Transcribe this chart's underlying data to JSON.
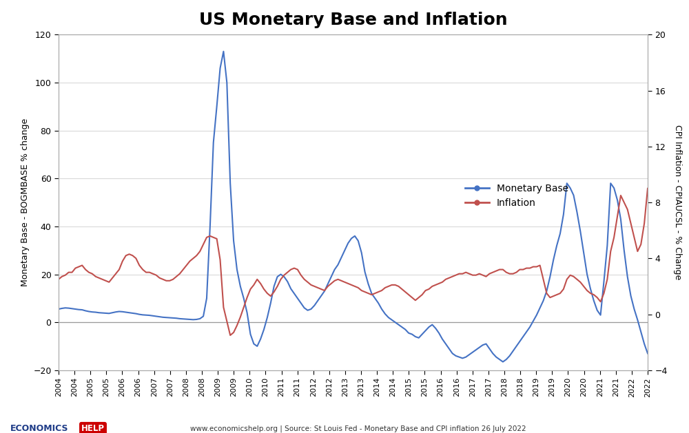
{
  "title": "US Monetary Base and Inflation",
  "ylabel_left": "Monetary Base - BOGMBASE % change",
  "ylabel_right": "CPI Inflation - CPIAUCSL - % Change",
  "ylim_left": [
    -20,
    120
  ],
  "ylim_right": [
    -4,
    20
  ],
  "yticks_left": [
    -20,
    0,
    20,
    40,
    60,
    80,
    100,
    120
  ],
  "yticks_right": [
    -4,
    0,
    4,
    8,
    12,
    16,
    20
  ],
  "footer_text": "www.economicshelp.org | Source: St Louis Fed - Monetary Base and CPI inflation 26 July 2022",
  "legend_monetary": "Monetary Base",
  "legend_inflation": "Inflation",
  "blue_color": "#4472C4",
  "red_color": "#C0504D",
  "background_color": "#FFFFFF",
  "grid_color": "#D9D9D9",
  "monetary_base": [
    5.5,
    5.8,
    6.0,
    5.9,
    5.7,
    5.5,
    5.3,
    5.2,
    4.8,
    4.5,
    4.3,
    4.2,
    4.0,
    3.9,
    3.8,
    3.7,
    4.0,
    4.3,
    4.5,
    4.4,
    4.2,
    4.0,
    3.8,
    3.6,
    3.3,
    3.1,
    3.0,
    2.9,
    2.7,
    2.5,
    2.3,
    2.1,
    2.0,
    1.9,
    1.8,
    1.7,
    1.5,
    1.4,
    1.3,
    1.2,
    1.1,
    1.2,
    1.5,
    2.5,
    10.0,
    40.0,
    75.0,
    90.0,
    106.0,
    113.0,
    100.0,
    58.0,
    34.0,
    22.0,
    15.0,
    10.0,
    4.0,
    -5.0,
    -9.0,
    -10.0,
    -7.0,
    -3.0,
    2.0,
    8.0,
    15.0,
    19.0,
    20.0,
    19.0,
    17.0,
    14.0,
    12.0,
    10.0,
    8.0,
    6.0,
    5.0,
    5.5,
    7.0,
    9.0,
    11.0,
    13.0,
    16.0,
    19.0,
    22.0,
    24.0,
    27.0,
    30.0,
    33.0,
    35.0,
    36.0,
    34.0,
    29.0,
    21.0,
    16.0,
    12.0,
    10.0,
    8.0,
    5.5,
    3.5,
    2.0,
    1.0,
    0.0,
    -1.0,
    -2.0,
    -3.0,
    -4.5,
    -5.0,
    -6.0,
    -6.5,
    -5.0,
    -3.5,
    -2.0,
    -1.0,
    -2.5,
    -4.5,
    -7.0,
    -9.0,
    -11.0,
    -13.0,
    -14.0,
    -14.5,
    -15.0,
    -14.5,
    -13.5,
    -12.5,
    -11.5,
    -10.5,
    -9.5,
    -9.0,
    -11.0,
    -13.0,
    -14.5,
    -15.5,
    -16.5,
    -15.5,
    -14.0,
    -12.0,
    -10.0,
    -8.0,
    -6.0,
    -4.0,
    -2.0,
    0.5,
    3.0,
    6.0,
    9.0,
    13.0,
    19.0,
    26.0,
    32.0,
    37.0,
    45.0,
    58.0,
    56.0,
    53.0,
    46.0,
    38.0,
    29.0,
    20.0,
    14.0,
    9.0,
    5.0,
    3.0,
    17.0,
    32.0,
    58.0,
    56.0,
    51.0,
    43.0,
    30.0,
    19.0,
    11.0,
    5.5,
    1.0,
    -4.0,
    -9.0,
    -13.0
  ],
  "inflation": [
    2.5,
    2.7,
    2.8,
    3.0,
    3.0,
    3.3,
    3.4,
    3.5,
    3.2,
    3.0,
    2.9,
    2.7,
    2.6,
    2.5,
    2.4,
    2.3,
    2.6,
    2.9,
    3.2,
    3.8,
    4.2,
    4.3,
    4.2,
    4.0,
    3.5,
    3.2,
    3.0,
    3.0,
    2.9,
    2.8,
    2.6,
    2.5,
    2.4,
    2.4,
    2.5,
    2.7,
    2.9,
    3.2,
    3.5,
    3.8,
    4.0,
    4.2,
    4.5,
    5.0,
    5.5,
    5.6,
    5.5,
    5.4,
    3.9,
    0.5,
    -0.5,
    -1.5,
    -1.3,
    -0.8,
    -0.2,
    0.5,
    1.2,
    1.8,
    2.1,
    2.5,
    2.2,
    1.8,
    1.5,
    1.3,
    1.6,
    2.0,
    2.5,
    2.8,
    3.0,
    3.2,
    3.3,
    3.2,
    2.8,
    2.5,
    2.3,
    2.1,
    2.0,
    1.9,
    1.8,
    1.7,
    2.0,
    2.2,
    2.4,
    2.5,
    2.4,
    2.3,
    2.2,
    2.1,
    2.0,
    1.9,
    1.7,
    1.6,
    1.5,
    1.4,
    1.5,
    1.6,
    1.7,
    1.9,
    2.0,
    2.1,
    2.1,
    2.0,
    1.8,
    1.6,
    1.4,
    1.2,
    1.0,
    1.2,
    1.4,
    1.7,
    1.8,
    2.0,
    2.1,
    2.2,
    2.3,
    2.5,
    2.6,
    2.7,
    2.8,
    2.9,
    2.9,
    3.0,
    2.9,
    2.8,
    2.8,
    2.9,
    2.8,
    2.7,
    2.9,
    3.0,
    3.1,
    3.2,
    3.2,
    3.0,
    2.9,
    2.9,
    3.0,
    3.2,
    3.2,
    3.3,
    3.3,
    3.4,
    3.4,
    3.5,
    2.5,
    1.5,
    1.2,
    1.3,
    1.4,
    1.5,
    1.8,
    2.5,
    2.8,
    2.7,
    2.5,
    2.3,
    2.0,
    1.7,
    1.5,
    1.4,
    1.2,
    0.9,
    1.5,
    2.5,
    4.5,
    5.5,
    7.0,
    8.5,
    8.0,
    7.5,
    6.5,
    5.5,
    4.5,
    5.0,
    6.5,
    9.0
  ],
  "xtick_labels": [
    "2004",
    "2004",
    "2005",
    "2005",
    "2006",
    "2006",
    "2007",
    "2007",
    "2008",
    "2008",
    "2009",
    "2009",
    "2010",
    "2010",
    "2011",
    "2011",
    "2012",
    "2012",
    "2013",
    "2013",
    "2014",
    "2014",
    "2015",
    "2015",
    "2016",
    "2016",
    "2017",
    "2017",
    "2018",
    "2018",
    "2019",
    "2019",
    "2020",
    "2020",
    "2021",
    "2021",
    "2022",
    "2022"
  ]
}
